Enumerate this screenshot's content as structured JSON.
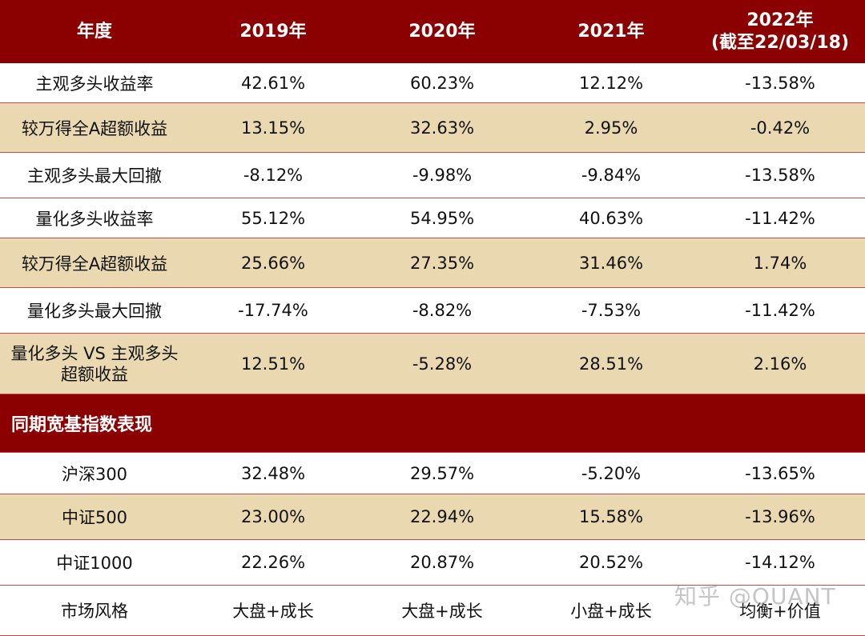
{
  "header": {
    "year": "年度",
    "y2019": "2019年",
    "y2020": "2020年",
    "y2021": "2021年",
    "y2022_line1": "2022年",
    "y2022_line2": "(截至22/03/18)"
  },
  "rows": [
    {
      "label": "主观多头收益率",
      "v": [
        "42.61%",
        "60.23%",
        "12.12%",
        "-13.58%"
      ]
    },
    {
      "label": "较万得全A超额收益",
      "v": [
        "13.15%",
        "32.63%",
        "2.95%",
        "-0.42%"
      ]
    },
    {
      "label": "主观多头最大回撤",
      "v": [
        "-8.12%",
        "-9.98%",
        "-9.84%",
        "-13.58%"
      ]
    },
    {
      "label": "量化多头收益率",
      "v": [
        "55.12%",
        "54.95%",
        "40.63%",
        "-11.42%"
      ]
    },
    {
      "label": "较万得全A超额收益",
      "v": [
        "25.66%",
        "27.35%",
        "31.46%",
        "1.74%"
      ]
    },
    {
      "label": "量化多头最大回撤",
      "v": [
        "-17.74%",
        "-8.82%",
        "-7.53%",
        "-11.42%"
      ]
    },
    {
      "label_line1": "量化多头 VS 主观多头",
      "label_line2": "超额收益",
      "v": [
        "12.51%",
        "-5.28%",
        "28.51%",
        "2.16%"
      ]
    }
  ],
  "section": {
    "title": "同期宽基指数表现"
  },
  "index_rows": [
    {
      "label": "沪深300",
      "v": [
        "32.48%",
        "29.57%",
        "-5.20%",
        "-13.65%"
      ]
    },
    {
      "label": "中证500",
      "v": [
        "23.00%",
        "22.94%",
        "15.58%",
        "-13.96%"
      ]
    },
    {
      "label": "中证1000",
      "v": [
        "22.26%",
        "20.87%",
        "20.52%",
        "-14.12%"
      ]
    },
    {
      "label": "市场风格",
      "v": [
        "大盘+成长",
        "大盘+成长",
        "小盘+成长",
        "均衡+价值"
      ]
    }
  ],
  "watermark": "知乎 @QUANT",
  "colors": {
    "header_bg": "#8b0000",
    "band_beige": "#ead9b0",
    "rule": "#c9474a"
  }
}
